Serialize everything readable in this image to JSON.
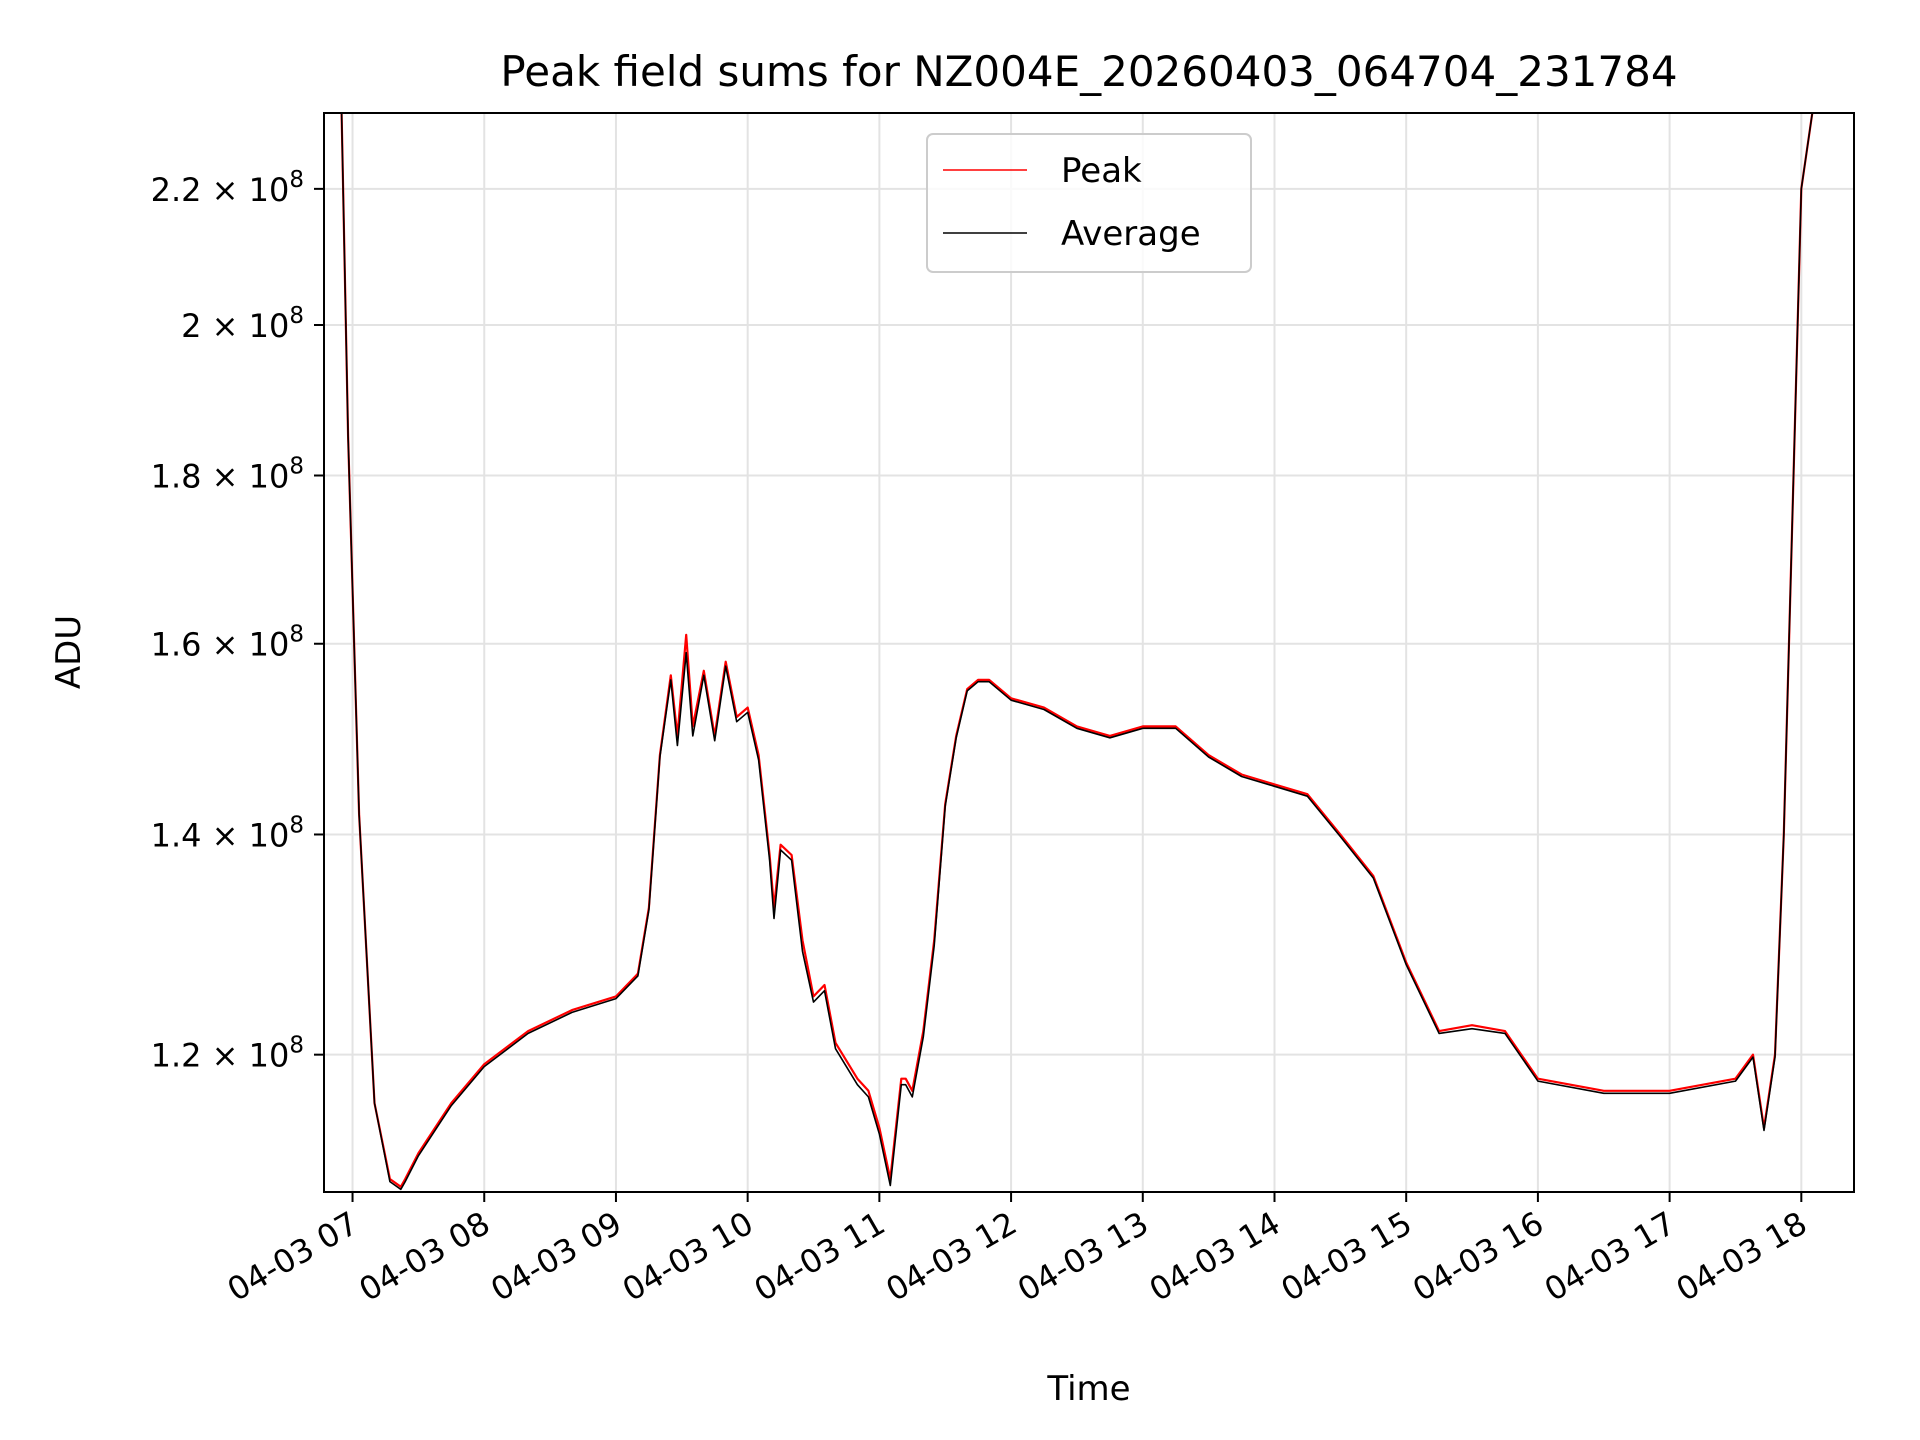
{
  "chart_data": {
    "type": "line",
    "title": "Peak field sums for NZ004E_20260403_064704_231784",
    "xlabel": "Time",
    "ylabel": "ADU",
    "yscale": "log",
    "grid": true,
    "legend_position": "upper center",
    "xlim": [
      "04-03 06:47",
      "04-03 18:24"
    ],
    "ylim": [
      109000000.0,
      232000000.0
    ],
    "x_ticks": [
      "04-03 07",
      "04-03 08",
      "04-03 09",
      "04-03 10",
      "04-03 11",
      "04-03 12",
      "04-03 13",
      "04-03 14",
      "04-03 15",
      "04-03 16",
      "04-03 17",
      "04-03 18"
    ],
    "y_ticks": [
      {
        "value": 120000000.0,
        "mantissa": "1.2",
        "exponent": "8"
      },
      {
        "value": 140000000.0,
        "mantissa": "1.4",
        "exponent": "8"
      },
      {
        "value": 160000000.0,
        "mantissa": "1.6",
        "exponent": "8"
      },
      {
        "value": 180000000.0,
        "mantissa": "1.8",
        "exponent": "8"
      },
      {
        "value": 200000000.0,
        "mantissa": "2",
        "exponent": "8"
      },
      {
        "value": 220000000.0,
        "mantissa": "2.2",
        "exponent": "8"
      }
    ],
    "series": [
      {
        "name": "Peak",
        "color": "#ff0000",
        "x": [
          "06:55",
          "06:58",
          "07:03",
          "07:10",
          "07:17",
          "07:22",
          "07:24",
          "07:30",
          "07:45",
          "08:00",
          "08:20",
          "08:40",
          "09:00",
          "09:10",
          "09:15",
          "09:20",
          "09:25",
          "09:28",
          "09:32",
          "09:35",
          "09:40",
          "09:45",
          "09:50",
          "09:55",
          "10:00",
          "10:05",
          "10:10",
          "10:12",
          "10:15",
          "10:20",
          "10:25",
          "10:30",
          "10:35",
          "10:40",
          "10:50",
          "10:55",
          "11:00",
          "11:05",
          "11:10",
          "11:12",
          "11:15",
          "11:20",
          "11:25",
          "11:30",
          "11:35",
          "11:40",
          "11:45",
          "11:50",
          "12:00",
          "12:15",
          "12:30",
          "12:45",
          "13:00",
          "13:15",
          "13:30",
          "13:45",
          "14:00",
          "14:15",
          "14:30",
          "14:45",
          "15:00",
          "15:15",
          "15:30",
          "15:45",
          "16:00",
          "16:30",
          "17:00",
          "17:30",
          "17:38",
          "17:43",
          "17:48",
          "17:52",
          "18:00",
          "18:05"
        ],
        "values": [
          232000000.0,
          185000000.0,
          142000000.0,
          116000000.0,
          110000000.0,
          109400000.0,
          110000000.0,
          112000000.0,
          116000000.0,
          119200000.0,
          122000000.0,
          123800000.0,
          125000000.0,
          127000000.0,
          133000000.0,
          148000000.0,
          156500000.0,
          150000000.0,
          161000000.0,
          151000000.0,
          157000000.0,
          150000000.0,
          158000000.0,
          152000000.0,
          153000000.0,
          148000000.0,
          138000000.0,
          133000000.0,
          139000000.0,
          138000000.0,
          130000000.0,
          125000000.0,
          126000000.0,
          121000000.0,
          118000000.0,
          117000000.0,
          114000000.0,
          110000000.0,
          118000000.0,
          118000000.0,
          117000000.0,
          122000000.0,
          130000000.0,
          143000000.0,
          150000000.0,
          155000000.0,
          156000000.0,
          156000000.0,
          154000000.0,
          153000000.0,
          151000000.0,
          150000000.0,
          151000000.0,
          151000000.0,
          148000000.0,
          146000000.0,
          145000000.0,
          144000000.0,
          140000000.0,
          136000000.0,
          128000000.0,
          122000000.0,
          122500000.0,
          122000000.0,
          118000000.0,
          117000000.0,
          117000000.0,
          118000000.0,
          120000000.0,
          114000000.0,
          120000000.0,
          140000000.0,
          220000000.0,
          232000000.0
        ]
      },
      {
        "name": "Average",
        "color": "#000000",
        "x": [
          "06:55",
          "06:58",
          "07:03",
          "07:10",
          "07:17",
          "07:22",
          "07:24",
          "07:30",
          "07:45",
          "08:00",
          "08:20",
          "08:40",
          "09:00",
          "09:10",
          "09:15",
          "09:20",
          "09:25",
          "09:28",
          "09:32",
          "09:35",
          "09:40",
          "09:45",
          "09:50",
          "09:55",
          "10:00",
          "10:05",
          "10:10",
          "10:12",
          "10:15",
          "10:20",
          "10:25",
          "10:30",
          "10:35",
          "10:40",
          "10:50",
          "10:55",
          "11:00",
          "11:05",
          "11:10",
          "11:12",
          "11:15",
          "11:20",
          "11:25",
          "11:30",
          "11:35",
          "11:40",
          "11:45",
          "11:50",
          "12:00",
          "12:15",
          "12:30",
          "12:45",
          "13:00",
          "13:15",
          "13:30",
          "13:45",
          "14:00",
          "14:15",
          "14:30",
          "14:45",
          "15:00",
          "15:15",
          "15:30",
          "15:45",
          "16:00",
          "16:30",
          "17:00",
          "17:30",
          "17:38",
          "17:43",
          "17:48",
          "17:52",
          "18:00",
          "18:05"
        ],
        "values": [
          232000000.0,
          185000000.0,
          142000000.0,
          116000000.0,
          109800000.0,
          109200000.0,
          109800000.0,
          111800000.0,
          115800000.0,
          119000000.0,
          121800000.0,
          123600000.0,
          124800000.0,
          126800000.0,
          132800000.0,
          147800000.0,
          156000000.0,
          149000000.0,
          159000000.0,
          150000000.0,
          156500000.0,
          149500000.0,
          157500000.0,
          151500000.0,
          152500000.0,
          147500000.0,
          137500000.0,
          132000000.0,
          138500000.0,
          137500000.0,
          129000000.0,
          124500000.0,
          125500000.0,
          120500000.0,
          117500000.0,
          116500000.0,
          113500000.0,
          109500000.0,
          117500000.0,
          117500000.0,
          116500000.0,
          121500000.0,
          129500000.0,
          142800000.0,
          149800000.0,
          154800000.0,
          155800000.0,
          155800000.0,
          153800000.0,
          152800000.0,
          150800000.0,
          149800000.0,
          150800000.0,
          150800000.0,
          147800000.0,
          145800000.0,
          144800000.0,
          143800000.0,
          139800000.0,
          135800000.0,
          127800000.0,
          121800000.0,
          122200000.0,
          121800000.0,
          117800000.0,
          116800000.0,
          116800000.0,
          117800000.0,
          119800000.0,
          113800000.0,
          119800000.0,
          140000000.0,
          220000000.0,
          232000000.0
        ]
      }
    ]
  }
}
